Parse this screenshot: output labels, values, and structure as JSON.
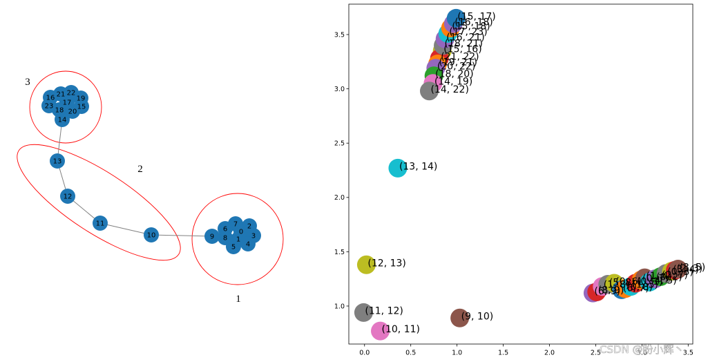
{
  "network": {
    "nodes": [
      0,
      1,
      2,
      3,
      4,
      5,
      6,
      7,
      8,
      9,
      10,
      11,
      12,
      13,
      14,
      15,
      16,
      17,
      18,
      19,
      20,
      21,
      22,
      23
    ],
    "edges": [
      [
        14,
        13
      ],
      [
        13,
        12
      ],
      [
        12,
        11
      ],
      [
        11,
        10
      ],
      [
        10,
        9
      ]
    ],
    "groups": [
      {
        "label": "1"
      },
      {
        "label": "2"
      },
      {
        "label": "3"
      }
    ],
    "node_color": "#1f77b4",
    "edge_color": "#808080",
    "group_outline_color": "#ff0000"
  },
  "chart_data": {
    "type": "scatter",
    "xlim": [
      -0.17,
      3.55
    ],
    "ylim": [
      0.65,
      3.78
    ],
    "xticks": [
      "0.0",
      "0.5",
      "1.0",
      "1.5",
      "2.0",
      "2.5",
      "3.0",
      "3.5"
    ],
    "yticks": [
      "1.0",
      "1.5",
      "2.0",
      "2.5",
      "3.0",
      "3.5"
    ],
    "grid": false,
    "points": [
      {
        "label": "(6, 9)",
        "x": 2.47,
        "y": 1.12,
        "color": "#9467bd"
      },
      {
        "label": "(8, 9)",
        "x": 2.51,
        "y": 1.13,
        "color": "#d62728"
      },
      {
        "label": "(1, 8)",
        "x": 2.57,
        "y": 1.18,
        "color": "#e377c2"
      },
      {
        "label": "(5, 8)",
        "x": 2.63,
        "y": 1.2,
        "color": "#7f7f7f"
      },
      {
        "label": "(0, 6)",
        "x": 2.7,
        "y": 1.21,
        "color": "#bcbd22"
      },
      {
        "label": "(6, 7)",
        "x": 2.78,
        "y": 1.15,
        "color": "#1f77b4"
      },
      {
        "label": "(0, 8)",
        "x": 2.82,
        "y": 1.16,
        "color": "#ff7f0e"
      },
      {
        "label": "(1, 5)",
        "x": 2.88,
        "y": 1.18,
        "color": "#17becf"
      },
      {
        "label": "(0, 1)",
        "x": 2.93,
        "y": 1.21,
        "color": "#d62728"
      },
      {
        "label": "(0, 7)",
        "x": 2.99,
        "y": 1.24,
        "color": "#ff7f0e"
      },
      {
        "label": "(1, 4)",
        "x": 3.03,
        "y": 1.26,
        "color": "#8c564b"
      },
      {
        "label": "(4, 5)",
        "x": 3.08,
        "y": 1.22,
        "color": "#17becf"
      },
      {
        "label": "(0, 2)",
        "x": 3.14,
        "y": 1.25,
        "color": "#9467bd"
      },
      {
        "label": "(2, 7)",
        "x": 3.2,
        "y": 1.27,
        "color": "#2ca02c"
      },
      {
        "label": "(0, 3)",
        "x": 3.26,
        "y": 1.3,
        "color": "#7f7f7f"
      },
      {
        "label": "(3, 4)",
        "x": 3.32,
        "y": 1.32,
        "color": "#bcbd22"
      },
      {
        "label": "(2, 3)",
        "x": 3.36,
        "y": 1.33,
        "color": "#d62728"
      },
      {
        "label": "(3, 5)",
        "x": 3.39,
        "y": 1.34,
        "color": "#8c564b"
      },
      {
        "label": "(9, 10)",
        "x": 1.03,
        "y": 0.89,
        "color": "#8c564b"
      },
      {
        "label": "(10, 11)",
        "x": 0.17,
        "y": 0.77,
        "color": "#e377c2"
      },
      {
        "label": "(11, 12)",
        "x": -0.01,
        "y": 0.94,
        "color": "#7f7f7f"
      },
      {
        "label": "(12, 13)",
        "x": 0.02,
        "y": 1.38,
        "color": "#bcbd22"
      },
      {
        "label": "(13, 14)",
        "x": 0.36,
        "y": 2.27,
        "color": "#17becf"
      },
      {
        "label": "(15, 16)",
        "x": 0.84,
        "y": 3.35,
        "color": "#bcbd22"
      },
      {
        "label": "(21, 22)",
        "x": 0.81,
        "y": 3.28,
        "color": "#d62728"
      },
      {
        "label": "(19, 21)",
        "x": 0.79,
        "y": 3.23,
        "color": "#ff7f0e"
      },
      {
        "label": "(18, 21)",
        "x": 0.85,
        "y": 3.4,
        "color": "#7f7f7f"
      },
      {
        "label": "(16, 21)",
        "x": 0.87,
        "y": 3.46,
        "color": "#9467bd"
      },
      {
        "label": "(17, 23)",
        "x": 0.9,
        "y": 3.51,
        "color": "#17becf"
      },
      {
        "label": "(15, 18)",
        "x": 0.93,
        "y": 3.56,
        "color": "#ff7f0e"
      },
      {
        "label": "(16, 18)",
        "x": 0.96,
        "y": 3.6,
        "color": "#9467bd"
      },
      {
        "label": "(15, 17)",
        "x": 0.99,
        "y": 3.65,
        "color": "#1f77b4"
      },
      {
        "label": "(20, 22)",
        "x": 0.77,
        "y": 3.19,
        "color": "#9467bd"
      },
      {
        "label": "(18, 20)",
        "x": 0.75,
        "y": 3.12,
        "color": "#2ca02c"
      },
      {
        "label": "(14, 19)",
        "x": 0.74,
        "y": 3.05,
        "color": "#e377c2"
      },
      {
        "label": "(14, 22)",
        "x": 0.7,
        "y": 2.98,
        "color": "#7f7f7f"
      }
    ]
  },
  "watermark": "CSDN @盼小辉丶"
}
